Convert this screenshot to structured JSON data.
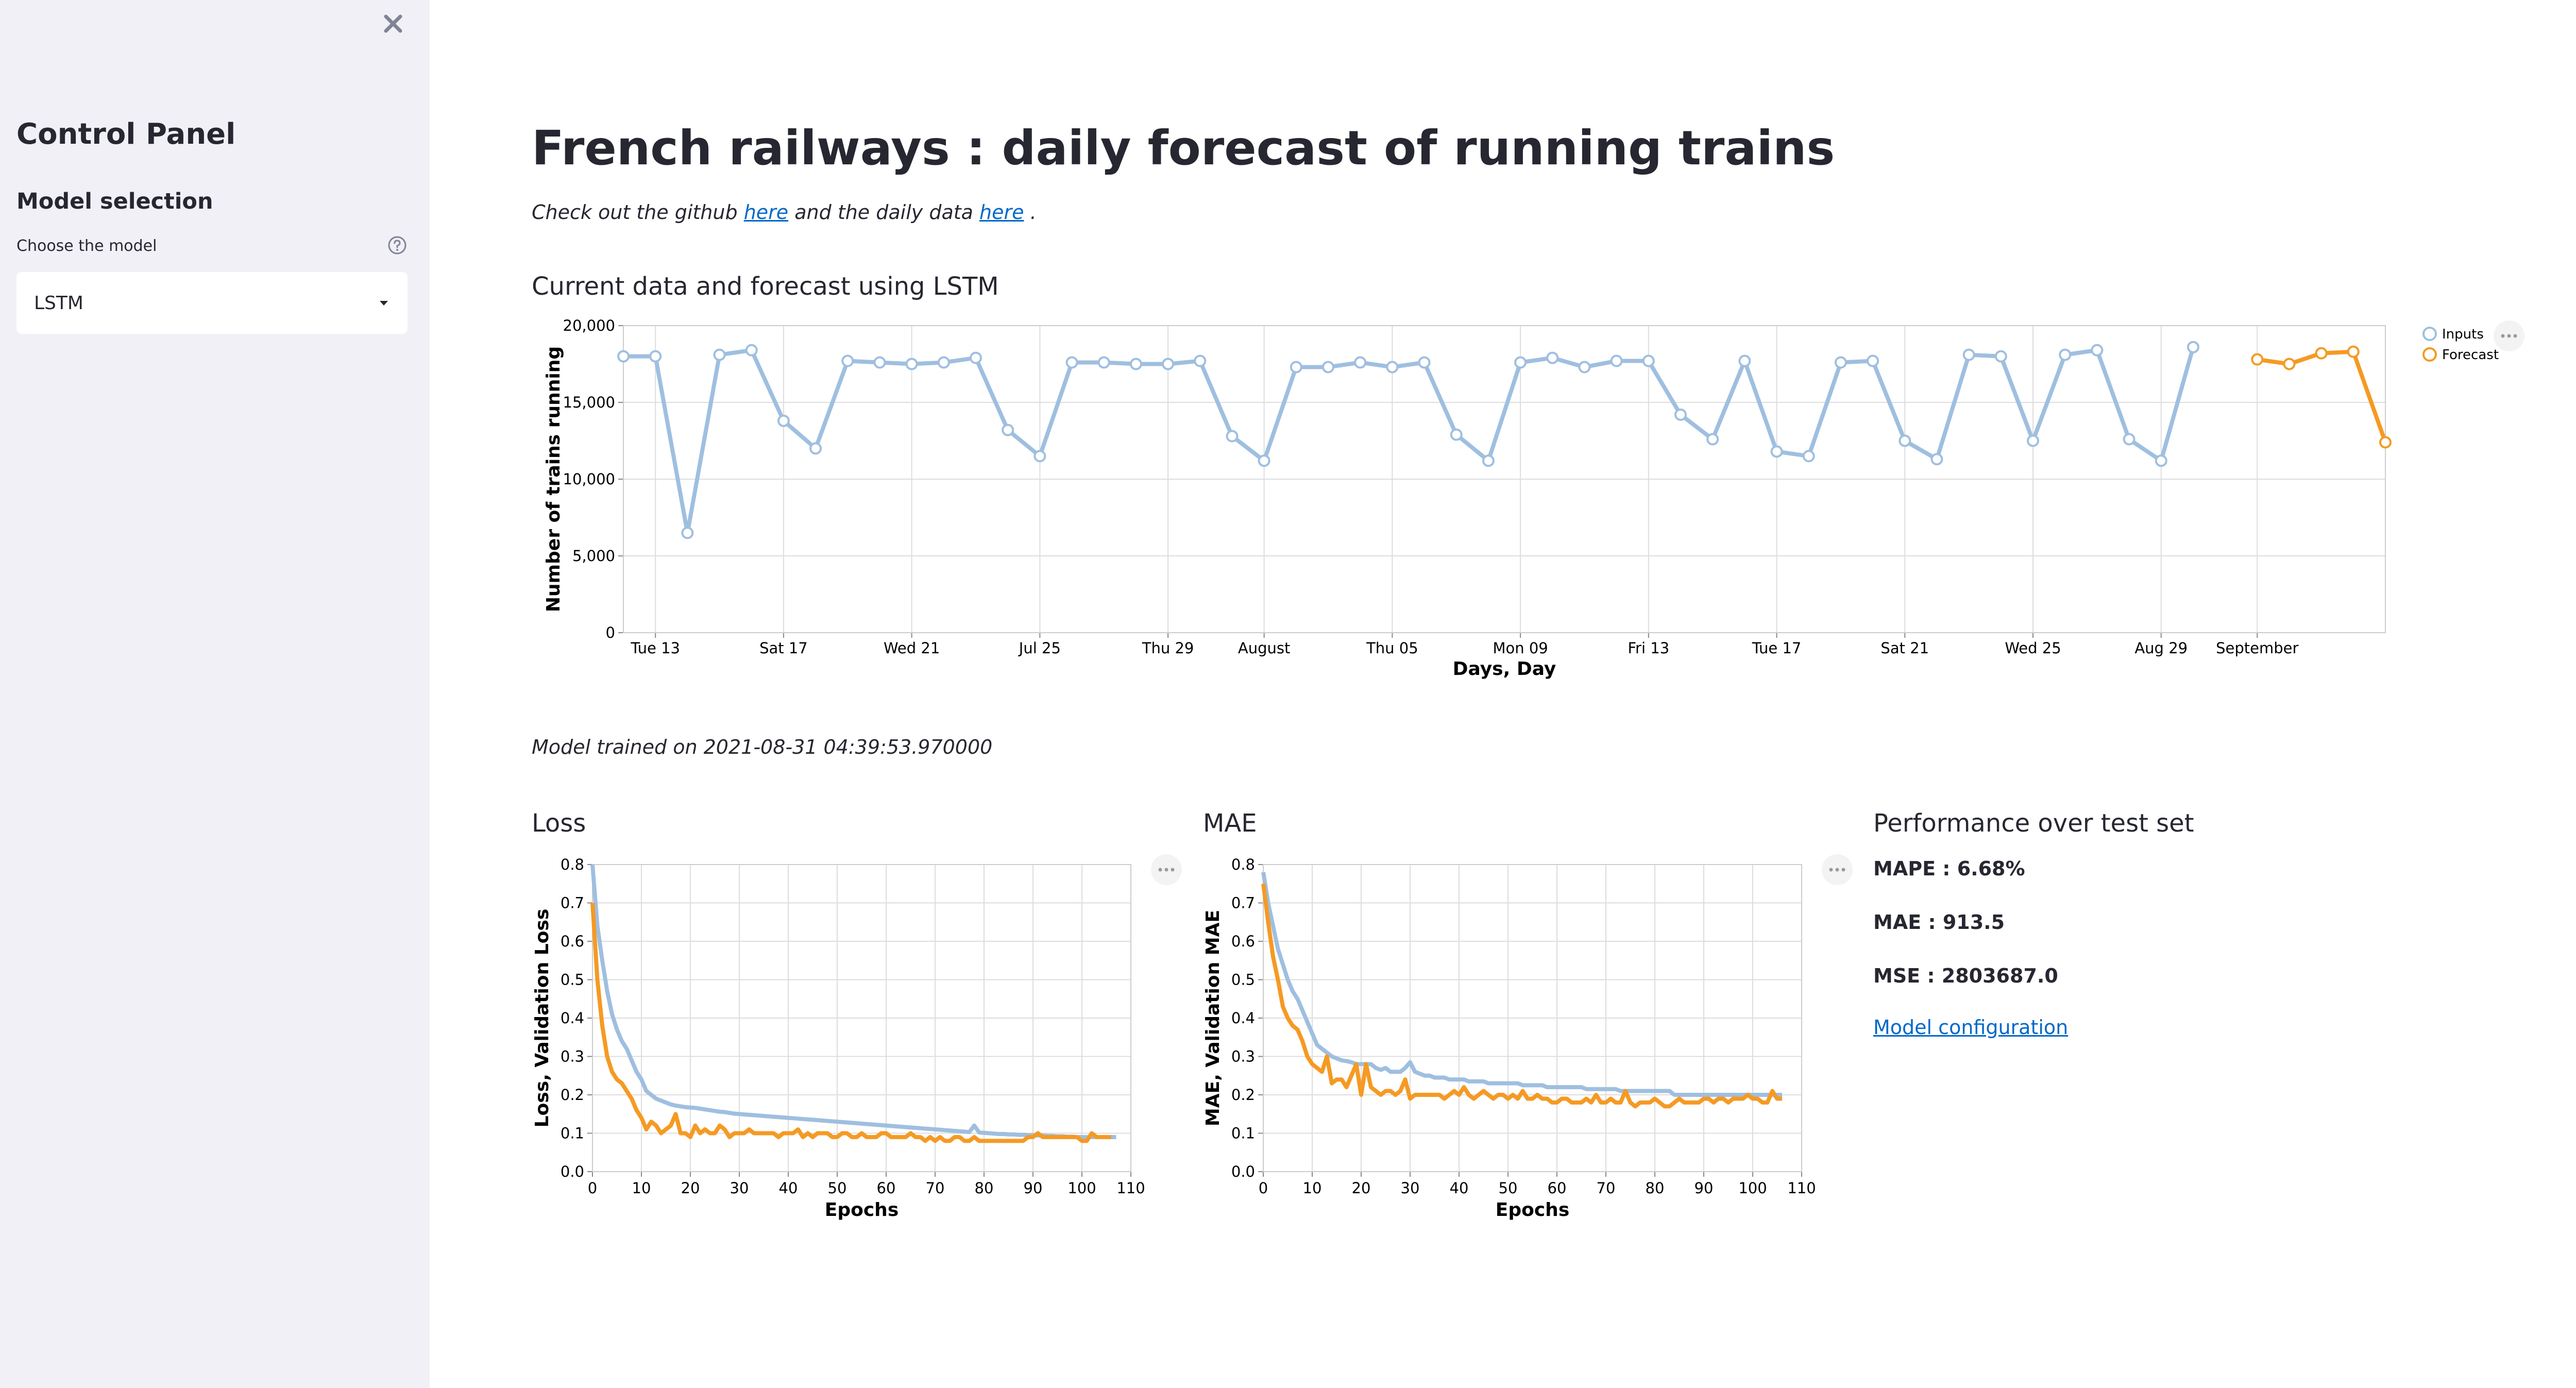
{
  "sidebar": {
    "title": "Control Panel",
    "subtitle": "Model selection",
    "select_label": "Choose the model",
    "selected_model": "LSTM",
    "bg_color": "#f0f0f6"
  },
  "main": {
    "title": "French railways : daily forecast of running trains",
    "intro_prefix": "Check out the github",
    "intro_link1": "here",
    "intro_middle": "and the daily data",
    "intro_link2": "here",
    "intro_suffix": ".",
    "forecast_heading": "Current data and forecast using LSTM",
    "model_trained": "Model trained on 2021-08-31 04:39:53.970000",
    "loss_heading": "Loss",
    "mae_heading": "MAE",
    "performance": {
      "heading": "Performance over test set",
      "mape": "MAPE : 6.68%",
      "mae": "MAE : 913.5",
      "mse": "MSE : 2803687.0",
      "config_link": "Model configuration"
    }
  },
  "colors": {
    "inputs": "#9fbfe0",
    "forecast": "#f59a23",
    "link": "#0068c9",
    "grid": "#dddddd"
  },
  "chart_data": [
    {
      "type": "line",
      "id": "forecast",
      "xlabel": "Days, Day",
      "ylabel": "Number of trains running",
      "ylim": [
        0,
        20000
      ],
      "yticks": [
        0,
        5000,
        10000,
        15000,
        20000
      ],
      "ytick_labels": [
        "0",
        "5,000",
        "10,000",
        "15,000",
        "20,000"
      ],
      "xtick_labels": [
        {
          "day": 2,
          "label": "Tue 13"
        },
        {
          "day": 6,
          "label": "Sat 17"
        },
        {
          "day": 10,
          "label": "Wed 21"
        },
        {
          "day": 14,
          "label": "Jul 25"
        },
        {
          "day": 18,
          "label": "Thu 29"
        },
        {
          "day": 21,
          "label": "August"
        },
        {
          "day": 25,
          "label": "Thu 05"
        },
        {
          "day": 29,
          "label": "Mon 09"
        },
        {
          "day": 33,
          "label": "Fri 13"
        },
        {
          "day": 37,
          "label": "Tue 17"
        },
        {
          "day": 41,
          "label": "Sat 21"
        },
        {
          "day": 45,
          "label": "Wed 25"
        },
        {
          "day": 49,
          "label": "Aug 29"
        },
        {
          "day": 52,
          "label": "September"
        }
      ],
      "x_range": [
        1,
        56
      ],
      "grid": true,
      "legend_position": "top-right",
      "series": [
        {
          "name": "Inputs",
          "x_start_day": 1,
          "values": [
            18000,
            18000,
            6500,
            18100,
            18400,
            13800,
            12000,
            17700,
            17600,
            17500,
            17600,
            17900,
            13200,
            11500,
            17600,
            17600,
            17500,
            17500,
            17700,
            12800,
            11200,
            17300,
            17300,
            17600,
            17300,
            17600,
            12900,
            11200,
            17600,
            17900,
            17300,
            17700,
            17700,
            14200,
            12600,
            17700,
            11800,
            11500,
            17600,
            17700,
            12500,
            11300,
            18100,
            18000,
            12500,
            18100,
            18400,
            12600,
            11200,
            18600
          ]
        },
        {
          "name": "Forecast",
          "x_start_day": 52,
          "values": [
            17800,
            17500,
            18200,
            18300,
            12400
          ]
        }
      ]
    },
    {
      "type": "line",
      "id": "loss",
      "xlabel": "Epochs",
      "ylabel": "Loss, Validation Loss",
      "xlim": [
        0,
        110
      ],
      "ylim": [
        0,
        0.8
      ],
      "xticks": [
        0,
        10,
        20,
        30,
        40,
        50,
        60,
        70,
        80,
        90,
        100,
        110
      ],
      "yticks": [
        0,
        0.1,
        0.2,
        0.3,
        0.4,
        0.5,
        0.6,
        0.7,
        0.8
      ],
      "ytick_labels": [
        "0.0",
        "0.1",
        "0.2",
        "0.3",
        "0.4",
        "0.5",
        "0.6",
        "0.7",
        "0.8"
      ],
      "grid": true,
      "series": [
        {
          "values": [
            0.8,
            0.64,
            0.55,
            0.47,
            0.41,
            0.37,
            0.34,
            0.32,
            0.29,
            0.26,
            0.24,
            0.21,
            0.2,
            0.19,
            0.185,
            0.18,
            0.175,
            0.172,
            0.17,
            0.168,
            0.167,
            0.166,
            0.164,
            0.162,
            0.16,
            0.158,
            0.156,
            0.155,
            0.153,
            0.151,
            0.15,
            0.149,
            0.148,
            0.147,
            0.146,
            0.145,
            0.144,
            0.143,
            0.142,
            0.141,
            0.14,
            0.139,
            0.138,
            0.137,
            0.136,
            0.135,
            0.134,
            0.133,
            0.132,
            0.131,
            0.13,
            0.129,
            0.128,
            0.127,
            0.126,
            0.125,
            0.124,
            0.123,
            0.122,
            0.121,
            0.12,
            0.119,
            0.118,
            0.117,
            0.116,
            0.115,
            0.114,
            0.113,
            0.112,
            0.111,
            0.11,
            0.109,
            0.108,
            0.107,
            0.106,
            0.105,
            0.104,
            0.103,
            0.12,
            0.102,
            0.101,
            0.1,
            0.099,
            0.098,
            0.098,
            0.097,
            0.097,
            0.096,
            0.096,
            0.095,
            0.095,
            0.094,
            0.094,
            0.093,
            0.093,
            0.092,
            0.092,
            0.091,
            0.091,
            0.09,
            0.09,
            0.09,
            0.09,
            0.09,
            0.09,
            0.09,
            0.09,
            0.09
          ]
        },
        {
          "values": [
            0.7,
            0.5,
            0.38,
            0.3,
            0.26,
            0.24,
            0.23,
            0.21,
            0.19,
            0.16,
            0.14,
            0.11,
            0.13,
            0.12,
            0.1,
            0.11,
            0.12,
            0.15,
            0.1,
            0.1,
            0.09,
            0.12,
            0.1,
            0.11,
            0.1,
            0.1,
            0.12,
            0.11,
            0.09,
            0.1,
            0.1,
            0.1,
            0.11,
            0.1,
            0.1,
            0.1,
            0.1,
            0.1,
            0.09,
            0.1,
            0.1,
            0.1,
            0.11,
            0.09,
            0.1,
            0.09,
            0.1,
            0.1,
            0.1,
            0.09,
            0.09,
            0.1,
            0.1,
            0.09,
            0.09,
            0.1,
            0.09,
            0.09,
            0.09,
            0.1,
            0.1,
            0.09,
            0.09,
            0.09,
            0.09,
            0.1,
            0.09,
            0.09,
            0.08,
            0.09,
            0.08,
            0.09,
            0.08,
            0.08,
            0.09,
            0.09,
            0.08,
            0.08,
            0.09,
            0.08,
            0.08,
            0.08,
            0.08,
            0.08,
            0.08,
            0.08,
            0.08,
            0.08,
            0.08,
            0.09,
            0.09,
            0.1,
            0.09,
            0.09,
            0.09,
            0.09,
            0.09,
            0.09,
            0.09,
            0.09,
            0.08,
            0.08,
            0.1,
            0.09,
            0.09,
            0.09,
            0.09
          ]
        }
      ]
    },
    {
      "type": "line",
      "id": "mae",
      "xlabel": "Epochs",
      "ylabel": "MAE, Validation MAE",
      "xlim": [
        0,
        110
      ],
      "ylim": [
        0,
        0.8
      ],
      "xticks": [
        0,
        10,
        20,
        30,
        40,
        50,
        60,
        70,
        80,
        90,
        100,
        110
      ],
      "yticks": [
        0,
        0.1,
        0.2,
        0.3,
        0.4,
        0.5,
        0.6,
        0.7,
        0.8
      ],
      "ytick_labels": [
        "0.0",
        "0.1",
        "0.2",
        "0.3",
        "0.4",
        "0.5",
        "0.6",
        "0.7",
        "0.8"
      ],
      "grid": true,
      "series": [
        {
          "values": [
            0.78,
            0.7,
            0.64,
            0.58,
            0.54,
            0.5,
            0.47,
            0.45,
            0.42,
            0.39,
            0.36,
            0.33,
            0.32,
            0.31,
            0.3,
            0.295,
            0.29,
            0.288,
            0.285,
            0.28,
            0.28,
            0.28,
            0.28,
            0.27,
            0.265,
            0.27,
            0.26,
            0.26,
            0.26,
            0.27,
            0.285,
            0.26,
            0.255,
            0.25,
            0.25,
            0.245,
            0.245,
            0.245,
            0.24,
            0.24,
            0.24,
            0.24,
            0.235,
            0.235,
            0.235,
            0.235,
            0.23,
            0.23,
            0.23,
            0.23,
            0.23,
            0.23,
            0.23,
            0.225,
            0.225,
            0.225,
            0.225,
            0.225,
            0.22,
            0.22,
            0.22,
            0.22,
            0.22,
            0.22,
            0.22,
            0.22,
            0.215,
            0.215,
            0.215,
            0.215,
            0.215,
            0.215,
            0.215,
            0.21,
            0.21,
            0.21,
            0.21,
            0.21,
            0.21,
            0.21,
            0.21,
            0.21,
            0.21,
            0.21,
            0.2,
            0.2,
            0.2,
            0.2,
            0.2,
            0.2,
            0.2,
            0.2,
            0.2,
            0.2,
            0.2,
            0.2,
            0.2,
            0.2,
            0.2,
            0.2,
            0.2,
            0.2,
            0.2,
            0.2,
            0.2,
            0.2,
            0.2
          ]
        },
        {
          "values": [
            0.75,
            0.65,
            0.56,
            0.5,
            0.43,
            0.4,
            0.38,
            0.37,
            0.34,
            0.3,
            0.28,
            0.27,
            0.26,
            0.3,
            0.23,
            0.24,
            0.24,
            0.22,
            0.25,
            0.28,
            0.2,
            0.28,
            0.22,
            0.21,
            0.2,
            0.21,
            0.21,
            0.2,
            0.21,
            0.24,
            0.19,
            0.2,
            0.2,
            0.2,
            0.2,
            0.2,
            0.2,
            0.19,
            0.2,
            0.21,
            0.2,
            0.22,
            0.2,
            0.19,
            0.2,
            0.21,
            0.2,
            0.19,
            0.2,
            0.2,
            0.19,
            0.2,
            0.19,
            0.21,
            0.19,
            0.19,
            0.2,
            0.19,
            0.19,
            0.18,
            0.18,
            0.19,
            0.19,
            0.18,
            0.18,
            0.18,
            0.19,
            0.18,
            0.2,
            0.18,
            0.18,
            0.19,
            0.18,
            0.18,
            0.21,
            0.18,
            0.17,
            0.18,
            0.18,
            0.18,
            0.19,
            0.18,
            0.17,
            0.17,
            0.18,
            0.19,
            0.18,
            0.18,
            0.18,
            0.18,
            0.19,
            0.19,
            0.18,
            0.19,
            0.19,
            0.18,
            0.19,
            0.19,
            0.19,
            0.2,
            0.19,
            0.19,
            0.18,
            0.18,
            0.21,
            0.19,
            0.19
          ]
        }
      ]
    }
  ]
}
